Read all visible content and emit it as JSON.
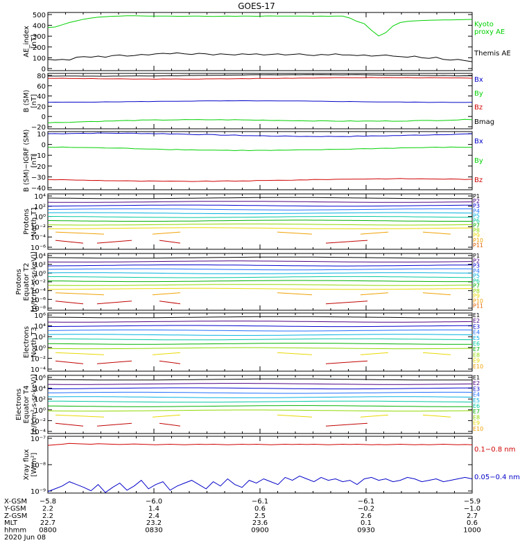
{
  "title": "GOES-17",
  "colors": {
    "black": "#000000",
    "blue": "#0000c8",
    "green": "#00d000",
    "red": "#d00000",
    "p_palette": [
      "#000000",
      "#4b0082",
      "#0000cd",
      "#1e6fff",
      "#00b0e0",
      "#00c8a0",
      "#00b000",
      "#90d800",
      "#e8d800",
      "#f0a000",
      "#e06000",
      "#c00000"
    ]
  },
  "chart_data": [
    {
      "id": "ae",
      "type": "line",
      "ylabel": "AE_index\n[nT]",
      "yticks": [
        "500",
        "400",
        "300",
        "200",
        "100",
        "0"
      ],
      "ylim": [
        0,
        520
      ],
      "series": [
        {
          "name": "Kyoto\nproxy AE",
          "color": "green",
          "values": [
            385,
            390,
            410,
            430,
            445,
            460,
            470,
            478,
            482,
            486,
            488,
            490,
            490,
            489,
            488,
            488,
            487,
            487,
            486,
            486,
            487,
            487,
            486,
            485,
            486,
            487,
            486,
            488,
            487,
            486,
            488,
            489,
            488,
            487,
            488,
            487,
            487,
            486,
            487,
            486,
            488,
            487,
            470,
            440,
            420,
            360,
            310,
            340,
            400,
            430,
            440,
            445,
            448,
            450,
            452,
            453,
            454,
            455,
            457,
            458
          ]
        },
        {
          "name": "Themis AE",
          "color": "black",
          "values": [
            100,
            95,
            100,
            95,
            120,
            125,
            120,
            130,
            120,
            135,
            140,
            130,
            135,
            145,
            140,
            150,
            155,
            150,
            160,
            150,
            145,
            155,
            150,
            140,
            150,
            145,
            140,
            150,
            145,
            150,
            140,
            145,
            150,
            140,
            145,
            150,
            140,
            135,
            145,
            140,
            150,
            140,
            140,
            135,
            140,
            130,
            135,
            140,
            130,
            125,
            120,
            130,
            115,
            110,
            120,
            100,
            95,
            100,
            90,
            80
          ]
        }
      ]
    },
    {
      "id": "bsm",
      "type": "line",
      "ylabel": "B (SM)\n[nT]",
      "yticks": [
        "80",
        "60",
        "40",
        "20",
        "0",
        "−20"
      ],
      "ylim": [
        -27,
        85
      ],
      "series": [
        {
          "name": "Bx",
          "color": "blue"
        },
        {
          "name": "By",
          "color": "green"
        },
        {
          "name": "Bz",
          "color": "red"
        },
        {
          "name": "Bmag",
          "color": "black"
        }
      ]
    },
    {
      "id": "bigrf",
      "type": "line",
      "ylabel": "B (SM)−IGRF (SM)\n[nT]",
      "yticks": [
        "10",
        "0",
        "−10",
        "−20",
        "−30",
        "−40"
      ],
      "ylim": [
        -42,
        12
      ],
      "series": [
        {
          "name": "Bx",
          "color": "blue"
        },
        {
          "name": "By",
          "color": "green"
        },
        {
          "name": "Bz",
          "color": "red"
        }
      ]
    },
    {
      "id": "pt1",
      "type": "line",
      "ylabel": "Protons\nNorth T1",
      "yticks": [
        "10⁴",
        "10²",
        "10⁰",
        "10⁻²",
        "10⁻⁴",
        "10⁻⁶"
      ],
      "legend": [
        "P1",
        "P2",
        "P3",
        "P4",
        "P5",
        "P6",
        "P7",
        "P8",
        "P9",
        "P10",
        "P11"
      ]
    },
    {
      "id": "pt2",
      "type": "line",
      "ylabel": "Protons\nEquator T2\n[p/(cm²-s-sr-keV)]",
      "yticks": [
        "10⁴",
        "10²",
        "10⁰",
        "10⁻²",
        "10⁻⁴",
        "10⁻⁶",
        "10⁻⁸"
      ],
      "legend": [
        "P1",
        "P2",
        "P3",
        "P4",
        "P5",
        "P6",
        "P7",
        "P8",
        "P9",
        "P10",
        "P11"
      ]
    },
    {
      "id": "et3",
      "type": "line",
      "ylabel": "Electrons\nNorth T3",
      "yticks": [
        "10⁶",
        "10⁴",
        "10²",
        "10⁰",
        "10⁻²",
        "10⁻⁴"
      ],
      "legend": [
        "E1",
        "E2",
        "E3",
        "E4",
        "E5",
        "E6",
        "E7",
        "E8",
        "E9",
        "E10"
      ]
    },
    {
      "id": "et4",
      "type": "line",
      "ylabel": "Electrons\nEquator T4\n[e/(cm²-s-sr-keV)]",
      "yticks": [
        "10⁶",
        "10⁴",
        "10²",
        "10⁰",
        "10⁻²",
        "10⁻⁴"
      ],
      "legend": [
        "E1",
        "E2",
        "E3",
        "E4",
        "E5",
        "E6",
        "E7",
        "E8",
        "E9",
        "E10"
      ]
    },
    {
      "id": "xray",
      "type": "line",
      "ylabel": "Xray flux\n[W/m²]",
      "yticks": [
        "10⁻⁷",
        "10⁻⁸",
        "10⁻⁹"
      ],
      "ylim": [
        -9,
        -7
      ],
      "series": [
        {
          "name": "0.1−0.8 nm",
          "color": "red",
          "values": [
            -7.32,
            -7.3,
            -7.28,
            -7.25,
            -7.26,
            -7.27,
            -7.28,
            -7.26,
            -7.27,
            -7.28,
            -7.29,
            -7.28,
            -7.27,
            -7.28,
            -7.29,
            -7.3,
            -7.29,
            -7.28,
            -7.29,
            -7.3,
            -7.29,
            -7.28,
            -7.29,
            -7.28,
            -7.29,
            -7.3,
            -7.29,
            -7.28,
            -7.29,
            -7.28,
            -7.29,
            -7.3,
            -7.29,
            -7.28,
            -7.29,
            -7.28,
            -7.29,
            -7.28,
            -7.29,
            -7.3,
            -7.29,
            -7.28,
            -7.29,
            -7.28,
            -7.29,
            -7.3,
            -7.29,
            -7.3,
            -7.29,
            -7.28,
            -7.29,
            -7.3,
            -7.29,
            -7.3,
            -7.29,
            -7.28,
            -7.29,
            -7.3,
            -7.29,
            -7.3
          ]
        },
        {
          "name": "0.05−0.4 nm",
          "color": "blue",
          "values": [
            -8.95,
            -8.85,
            -8.75,
            -8.6,
            -8.7,
            -8.8,
            -8.92,
            -8.7,
            -8.98,
            -8.8,
            -8.65,
            -8.9,
            -8.75,
            -8.55,
            -8.85,
            -8.7,
            -8.6,
            -8.9,
            -8.75,
            -8.65,
            -8.55,
            -8.7,
            -8.85,
            -8.6,
            -8.75,
            -8.5,
            -8.7,
            -8.8,
            -8.55,
            -8.65,
            -8.5,
            -8.6,
            -8.7,
            -8.45,
            -8.55,
            -8.4,
            -8.5,
            -8.6,
            -8.45,
            -8.55,
            -8.5,
            -8.6,
            -8.55,
            -8.7,
            -8.5,
            -8.45,
            -8.55,
            -8.5,
            -8.6,
            -8.55,
            -8.45,
            -8.5,
            -8.6,
            -8.55,
            -8.5,
            -8.6,
            -8.55,
            -8.5,
            -8.45,
            -8.5
          ]
        }
      ]
    }
  ],
  "xaxis": {
    "row_labels": [
      "X-GSM",
      "Y-GSM",
      "Z-GSM",
      "MLT",
      "hhmm",
      "2020 Jun 08"
    ],
    "columns": [
      [
        "−5.8",
        "2.2",
        "2.2",
        "22.7",
        "0800"
      ],
      [
        "−6.0",
        "1.4",
        "2.4",
        "23.2",
        "0830"
      ],
      [
        "−6.1",
        "0.6",
        "2.5",
        "23.6",
        "0900"
      ],
      [
        "−6.1",
        "−0.2",
        "2.6",
        "0.1",
        "0930"
      ],
      [
        "−5.9",
        "−1.0",
        "2.7",
        "0.6",
        "1000"
      ]
    ]
  }
}
